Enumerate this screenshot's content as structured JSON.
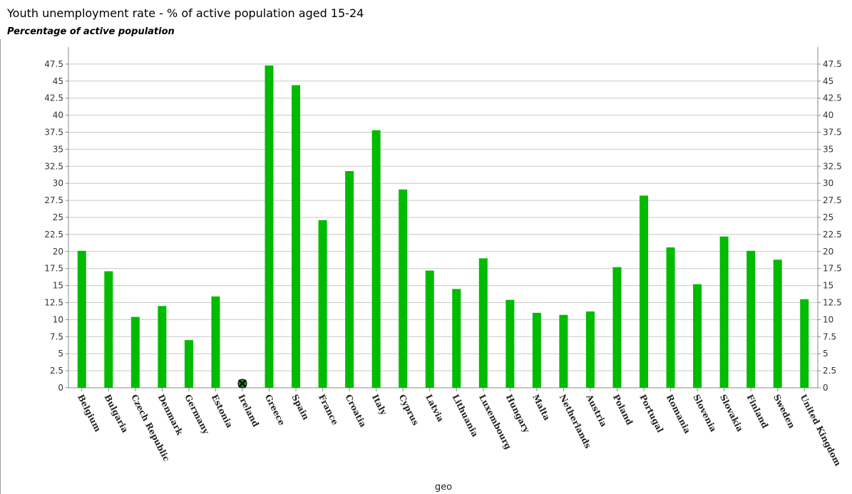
{
  "chart_data": {
    "type": "bar",
    "title": "Youth unemployment rate - % of active population aged 15-24",
    "subtitle": "Percentage of active population",
    "xlabel": "geo",
    "ylabel": "",
    "ylim": [
      0,
      50
    ],
    "yticks": [
      "0",
      "2.5",
      "5",
      "7.5",
      "10",
      "12.5",
      "15",
      "17.5",
      "20",
      "22.5",
      "25",
      "27.5",
      "30",
      "32.5",
      "35",
      "37.5",
      "40",
      "42.5",
      "45",
      "47.5"
    ],
    "grid": true,
    "legend": "none",
    "bar_color": "#00bb00",
    "categories": [
      "Belgium",
      "Bulgaria",
      "Czech Republic",
      "Denmark",
      "Germany",
      "Estonia",
      "Ireland",
      "Greece",
      "Spain",
      "France",
      "Croatia",
      "Italy",
      "Cyprus",
      "Latvia",
      "Lithuania",
      "Luxembourg",
      "Hungary",
      "Malta",
      "Netherlands",
      "Austria",
      "Poland",
      "Portugal",
      "Romania",
      "Slovenia",
      "Slovakia",
      "Finland",
      "Sweden",
      "United Kingdom"
    ],
    "values": [
      20.1,
      17.1,
      10.4,
      12.0,
      7.0,
      13.4,
      null,
      47.3,
      44.4,
      24.6,
      31.8,
      37.8,
      29.1,
      17.2,
      14.5,
      19.0,
      12.9,
      11.0,
      10.7,
      11.2,
      17.7,
      28.2,
      20.6,
      15.2,
      22.2,
      20.1,
      18.8,
      13.0
    ],
    "missing_marker_categories": [
      "Ireland"
    ]
  }
}
